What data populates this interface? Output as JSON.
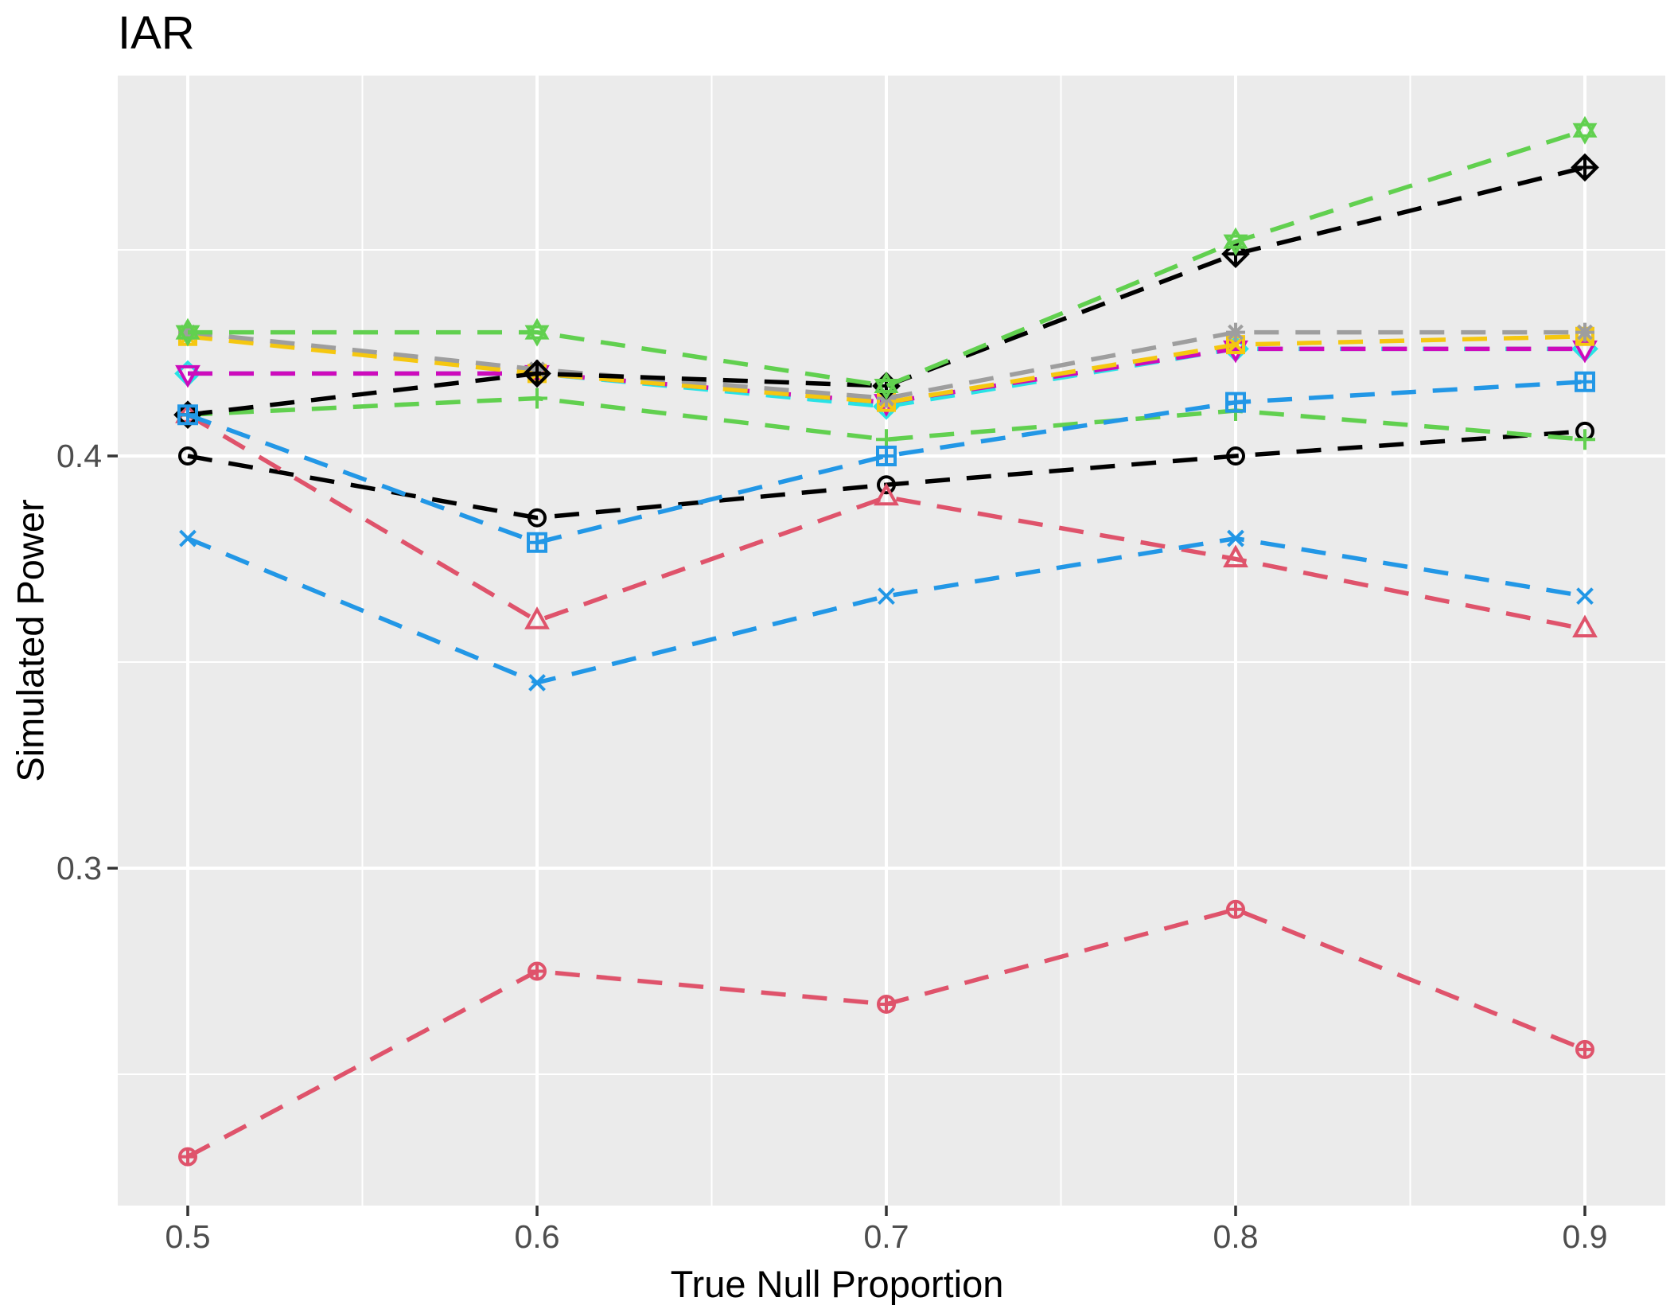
{
  "chart_data": {
    "type": "line",
    "title": "IAR",
    "xlabel": "True Null Proportion",
    "ylabel": "Simulated Power",
    "x": [
      0.5,
      0.6,
      0.7,
      0.8,
      0.9
    ],
    "x_tick_labels": [
      "0.5",
      "0.6",
      "0.7",
      "0.8",
      "0.9"
    ],
    "y_ticks": [
      {
        "value": 0.3,
        "label": "0.3"
      },
      {
        "value": 0.4,
        "label": "0.4"
      }
    ],
    "x_minor_gridlines": [
      0.55,
      0.65,
      0.75,
      0.85
    ],
    "y_minor_gridlines": [
      0.25,
      0.35,
      0.45
    ],
    "xlim": [
      0.48,
      0.923
    ],
    "ylim": [
      0.218,
      0.492
    ],
    "grid": true,
    "legend_position": "none",
    "line_style": "dashed",
    "panel_background": "#EBEBEB",
    "gridline_color": "#FFFFFF",
    "tick_label_color": "#4D4D4D",
    "series": [
      {
        "name": "black-circle",
        "marker": "circle",
        "color": "#000000",
        "values": [
          0.4,
          0.385,
          0.393,
          0.4,
          0.406
        ]
      },
      {
        "name": "red-triangle",
        "marker": "triangle-up",
        "color": "#DF536B",
        "values": [
          0.41,
          0.36,
          0.39,
          0.375,
          0.358
        ]
      },
      {
        "name": "green-plus",
        "marker": "plus",
        "color": "#61D04F",
        "values": [
          0.41,
          0.414,
          0.404,
          0.411,
          0.404
        ]
      },
      {
        "name": "blue-x",
        "marker": "x",
        "color": "#2297E6",
        "values": [
          0.38,
          0.345,
          0.366,
          0.38,
          0.366
        ]
      },
      {
        "name": "cyan-diamond",
        "marker": "diamond",
        "color": "#28E2E5",
        "values": [
          0.42,
          0.42,
          0.412,
          0.426,
          0.426
        ]
      },
      {
        "name": "magenta-triangle-down",
        "marker": "triangle-down",
        "color": "#CD0BBC",
        "values": [
          0.42,
          0.42,
          0.413,
          0.426,
          0.426
        ]
      },
      {
        "name": "yellow-square-x",
        "marker": "square-x",
        "color": "#F5C710",
        "values": [
          0.429,
          0.42,
          0.413,
          0.427,
          0.429
        ]
      },
      {
        "name": "gray-asterisk",
        "marker": "asterisk",
        "color": "#9E9E9E",
        "values": [
          0.43,
          0.421,
          0.414,
          0.43,
          0.43
        ]
      },
      {
        "name": "black-diamond-plus",
        "marker": "diamond-plus",
        "color": "#000000",
        "values": [
          0.41,
          0.42,
          0.417,
          0.449,
          0.47
        ]
      },
      {
        "name": "red-circle-plus",
        "marker": "circle-plus",
        "color": "#DF536B",
        "values": [
          0.23,
          0.275,
          0.267,
          0.29,
          0.256
        ]
      },
      {
        "name": "green-hexagram",
        "marker": "hexagram",
        "color": "#61D04F",
        "values": [
          0.43,
          0.43,
          0.417,
          0.452,
          0.479
        ]
      },
      {
        "name": "blue-square-plus",
        "marker": "square-plus",
        "color": "#2297E6",
        "values": [
          0.41,
          0.379,
          0.4,
          0.413,
          0.418
        ]
      }
    ]
  }
}
